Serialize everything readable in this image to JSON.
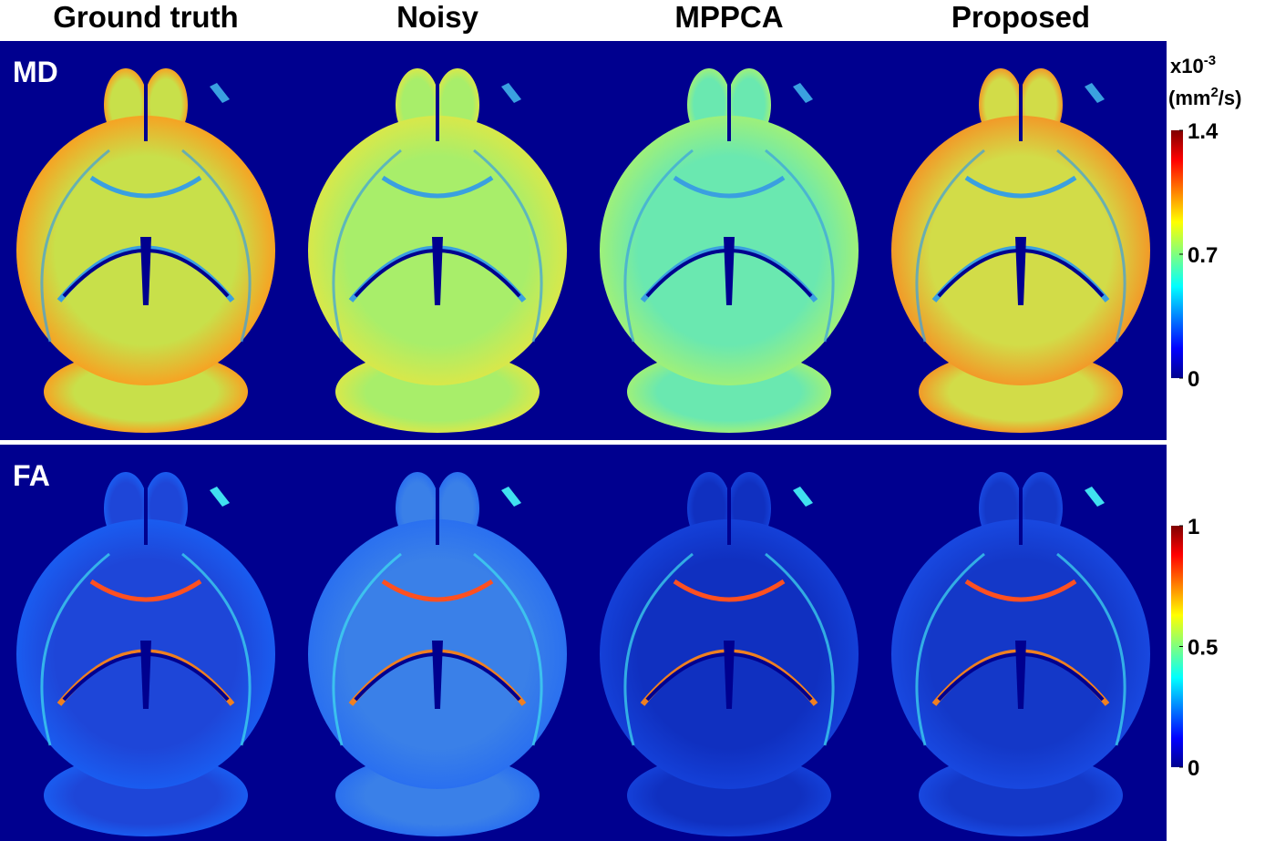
{
  "columns": [
    "Ground truth",
    "Noisy",
    "MPPCA",
    "Proposed"
  ],
  "rows": [
    {
      "label": "MD",
      "unit": {
        "prefix": "x10",
        "exponent": "-3",
        "open": "(mm",
        "square": "2",
        "close": "/s)"
      },
      "colorbar_ticks": [
        1.4,
        0.7,
        0
      ]
    },
    {
      "label": "FA",
      "colorbar_ticks": [
        1,
        0.5,
        0
      ]
    }
  ]
}
